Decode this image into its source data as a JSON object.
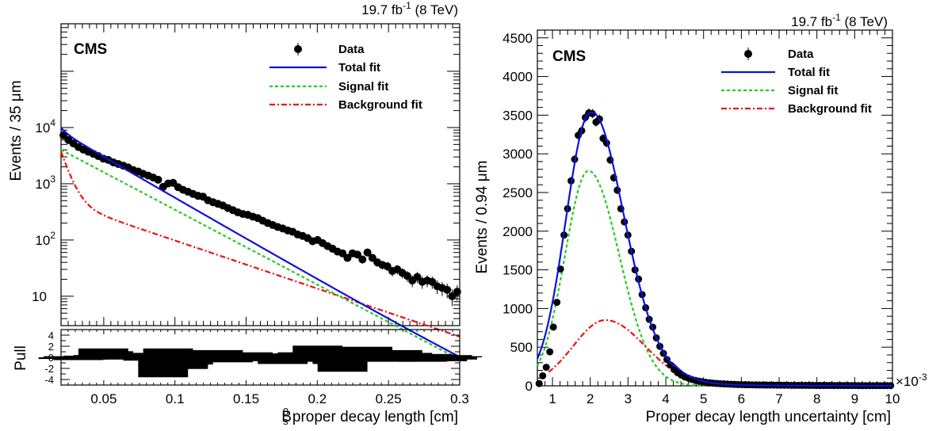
{
  "chart_data": [
    {
      "type": "scatter",
      "panel": "left",
      "label": "CMS",
      "lumi_value": "19.7 fb",
      "lumi_exp": "-1",
      "lumi_energy": " (8 TeV)",
      "ylabel": "Events / 35 μm",
      "xlabel_main": "B",
      "xlabel_sub": "s",
      "xlabel_sup": "0",
      "xlabel_rest": " proper decay length [cm]",
      "xlim": [
        0.02,
        0.3
      ],
      "ylim": [
        3,
        700000
      ],
      "yscale": "log",
      "xticks": [
        "0.05",
        "0.1",
        "0.15",
        "0.2",
        "0.25",
        "0.3"
      ],
      "yticks": [
        {
          "value": 10,
          "base": "10",
          "exp": ""
        },
        {
          "value": 100,
          "base": "10",
          "exp": "2"
        },
        {
          "value": 1000,
          "base": "10",
          "exp": "3"
        },
        {
          "value": 10000,
          "base": "10",
          "exp": "4"
        }
      ],
      "legend": {
        "placement": "top-right",
        "entries": [
          {
            "label": "Data",
            "style": "marker",
            "color": "#000000"
          },
          {
            "label": "Total fit",
            "style": "solid",
            "color": "#1010dd"
          },
          {
            "label": "Signal fit",
            "style": "dashed",
            "color": "#22cc22"
          },
          {
            "label": "Background fit",
            "style": "dashdot",
            "color": "#ee1111"
          }
        ]
      },
      "data": {
        "x": [
          0.0217,
          0.0252,
          0.0287,
          0.0322,
          0.0357,
          0.0392,
          0.0427,
          0.0462,
          0.0497,
          0.0532,
          0.0567,
          0.0602,
          0.0637,
          0.0672,
          0.0707,
          0.0742,
          0.0777,
          0.0812,
          0.0847,
          0.0882,
          0.0917,
          0.0952,
          0.0987,
          0.1022,
          0.1057,
          0.1092,
          0.1127,
          0.1162,
          0.1197,
          0.1232,
          0.1267,
          0.1302,
          0.1337,
          0.1372,
          0.1407,
          0.1442,
          0.1477,
          0.1512,
          0.1547,
          0.1582,
          0.1617,
          0.1652,
          0.1687,
          0.1722,
          0.1757,
          0.1792,
          0.1827,
          0.1862,
          0.1897,
          0.1932,
          0.1967,
          0.2002,
          0.2037,
          0.2072,
          0.2107,
          0.2142,
          0.2177,
          0.2212,
          0.2247,
          0.2282,
          0.2317,
          0.2352,
          0.2387,
          0.2422,
          0.2457,
          0.2492,
          0.2527,
          0.2562,
          0.2597,
          0.2632,
          0.2667,
          0.2702,
          0.2737,
          0.2772,
          0.2807,
          0.2842,
          0.2877,
          0.2912,
          0.2947,
          0.2982
        ],
        "y": [
          7300,
          6000,
          5200,
          4500,
          4050,
          3700,
          3400,
          3100,
          2800,
          2650,
          2400,
          2250,
          2100,
          1950,
          1750,
          1650,
          1500,
          1400,
          1290,
          1180,
          880,
          1010,
          1040,
          870,
          780,
          720,
          660,
          610,
          590,
          510,
          470,
          440,
          410,
          370,
          340,
          310,
          290,
          280,
          260,
          245,
          220,
          200,
          185,
          170,
          160,
          148,
          140,
          125,
          118,
          108,
          95,
          100,
          88,
          78,
          70,
          62,
          58,
          48,
          58,
          55,
          45,
          60,
          48,
          40,
          36,
          34,
          28,
          30,
          26,
          23,
          19,
          22,
          18,
          19,
          18,
          15,
          14,
          13,
          10,
          12
        ]
      },
      "fits": [
        {
          "name": "Total fit",
          "model": "3000*exp(-(x-0.05)/0.0296)+28*exp(-(x-0.05)/0.05)+1100*exp(-(x-0.0217)/0.0044)"
        },
        {
          "name": "Signal fit",
          "model": "1600*exp(-(x-0.05)/0.0326)"
        },
        {
          "name": "Background fit",
          "model": "262*exp(-(x-0.05)/0.0508)+2400*exp(-(x-0.0217)/0.0055)"
        }
      ],
      "pull": {
        "ylabel": "Pull",
        "yticks": [
          "-4",
          "-2",
          "0",
          "2",
          "4"
        ],
        "ylim": [
          -5,
          5
        ],
        "values": [
          -0.3,
          0.2,
          0.1,
          -0.5,
          -0.4,
          0.3,
          -0.2,
          0.4,
          1.6,
          1.1,
          -0.2,
          0.5,
          0.2,
          -0.4,
          0.8,
          0.1,
          -0.2,
          -0.6,
          0.5,
          0.1,
          -3.6,
          1.6,
          0.9,
          -0.8,
          -2.1,
          -1.3,
          0.6,
          1.2,
          0.8,
          -0.3,
          0.9,
          1.3,
          0.3,
          -0.9,
          -0.7,
          0.2,
          0.4,
          0.9,
          -0.3,
          0.7,
          0.5,
          -0.6,
          -0.4,
          0.3,
          -1.2,
          0.1,
          -0.4,
          -0.5,
          0.9,
          -0.1,
          -0.8,
          2.1,
          -0.7,
          -0.4,
          -0.6,
          -1.2,
          -2.6,
          1.6,
          -0.2,
          -0.5,
          -0.6,
          1.9,
          0.6,
          -0.3,
          -0.6,
          -0.2,
          -0.8,
          1.3,
          -0.4,
          0.8,
          0.5,
          -0.3,
          -0.8,
          0.6,
          0.5,
          -0.2,
          -0.7,
          0.4,
          -0.4,
          0.2
        ]
      }
    },
    {
      "type": "scatter",
      "panel": "right",
      "label": "CMS",
      "lumi_value": "19.7 fb",
      "lumi_exp": "-1",
      "lumi_energy": " (8 TeV)",
      "ylabel": "Events / 0.94 μm",
      "xlabel": "Proper decay length uncertainty [cm]",
      "x_multiplier": "×10",
      "x_multiplier_exp": "-3",
      "xlim": [
        0.6,
        10
      ],
      "ylim": [
        0,
        4600
      ],
      "xticks": [
        "1",
        "2",
        "3",
        "4",
        "5",
        "6",
        "7",
        "8",
        "9",
        "10"
      ],
      "yticks": [
        "0",
        "500",
        "1000",
        "1500",
        "2000",
        "2500",
        "3000",
        "3500",
        "4000",
        "4500"
      ],
      "legend": {
        "placement": "top-right",
        "entries": [
          {
            "label": "Data",
            "style": "marker",
            "color": "#000000"
          },
          {
            "label": "Total fit",
            "style": "solid",
            "color": "#1010dd"
          },
          {
            "label": "Signal fit",
            "style": "dashed",
            "color": "#22cc22"
          },
          {
            "label": "Background fit",
            "style": "dashdot",
            "color": "#ee1111"
          }
        ]
      },
      "data": {
        "x": [
          0.647,
          0.741,
          0.835,
          0.929,
          1.023,
          1.117,
          1.211,
          1.305,
          1.399,
          1.493,
          1.587,
          1.681,
          1.775,
          1.869,
          1.963,
          2.057,
          2.151,
          2.245,
          2.339,
          2.433,
          2.527,
          2.621,
          2.715,
          2.809,
          2.903,
          2.997,
          3.091,
          3.185,
          3.279,
          3.373,
          3.467,
          3.561,
          3.655,
          3.749,
          3.843,
          3.937,
          4.031,
          4.125,
          4.219,
          4.313,
          4.407,
          4.501,
          4.595,
          4.689,
          4.783,
          4.877,
          4.971,
          5.065,
          5.159,
          5.253,
          5.347,
          5.441,
          5.535,
          5.629,
          5.723,
          5.817,
          5.911,
          6.005,
          6.099,
          6.193,
          6.287,
          6.381,
          6.475,
          6.569,
          6.663,
          6.757,
          6.851,
          6.945,
          7.039,
          7.133,
          7.227,
          7.321,
          7.415,
          7.509,
          7.603,
          7.697,
          7.791,
          7.885,
          7.979,
          8.073,
          8.167,
          8.261,
          8.355,
          8.449,
          8.543,
          8.637,
          8.731,
          8.825,
          8.919,
          9.013,
          9.107,
          9.201,
          9.295,
          9.389,
          9.483,
          9.577,
          9.671,
          9.765,
          9.859,
          9.953
        ],
        "y": [
          30,
          130,
          240,
          440,
          760,
          1080,
          1510,
          1950,
          2290,
          2650,
          2930,
          3240,
          3300,
          3470,
          3530,
          3520,
          3410,
          3450,
          3200,
          3140,
          2920,
          2690,
          2530,
          2290,
          2120,
          1950,
          1740,
          1500,
          1380,
          1180,
          1010,
          860,
          760,
          620,
          510,
          420,
          340,
          270,
          210,
          170,
          140,
          115,
          100,
          82,
          70,
          60,
          52,
          45,
          40,
          35,
          31,
          28,
          25,
          23,
          21,
          19,
          17,
          16,
          15,
          14,
          13,
          12,
          11,
          11,
          10,
          10,
          9,
          9,
          8,
          8,
          8,
          7,
          7,
          7,
          6,
          6,
          6,
          6,
          5,
          5,
          5,
          5,
          5,
          4,
          4,
          4,
          4,
          4,
          4,
          4,
          3,
          3,
          3,
          3,
          3,
          3,
          3,
          3,
          3,
          3
        ]
      },
      "fits": [
        {
          "name": "Total fit",
          "model": "Signal fit + Background fit"
        },
        {
          "name": "Signal fit",
          "model": "2780*exp(-0.5*((x-1.95)/0.62)^2) for x<1.95, 2780*exp(-0.5*((x-1.95)/0.82)^2) for x>=1.95"
        },
        {
          "name": "Background fit",
          "model": "850*exp(-0.5*((x-2.4)/0.85)^2) for x<2.4, 850*exp(-0.5*((x-2.4)/1.05)^2) for x>=2.4, plus tail"
        }
      ]
    }
  ]
}
